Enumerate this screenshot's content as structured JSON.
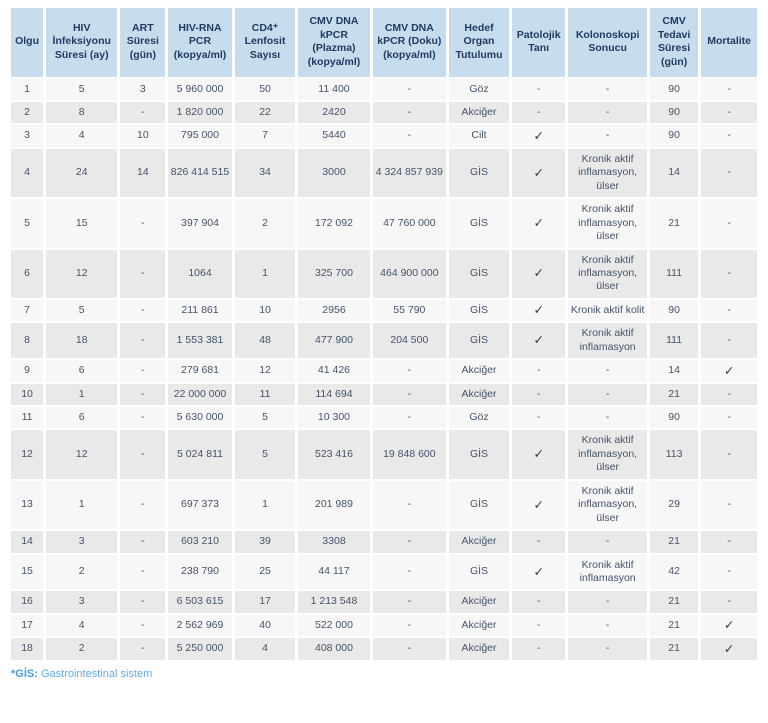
{
  "table": {
    "columns": [
      {
        "label": "Olgu"
      },
      {
        "label": "HIV İnfeksiyonu Süresi (ay)"
      },
      {
        "label": "ART Süresi (gün)"
      },
      {
        "label": "HIV-RNA PCR (kopya/ml)"
      },
      {
        "label": "CD4⁺ Lenfosit Sayısı"
      },
      {
        "label": "CMV DNA kPCR (Plazma) (kopya/ml)"
      },
      {
        "label": "CMV DNA kPCR (Doku) (kopya/ml)"
      },
      {
        "label": "Hedef Organ Tutulumu"
      },
      {
        "label": "Patolojik Tanı"
      },
      {
        "label": "Kolonoskopi Sonucu"
      },
      {
        "label": "CMV Tedavi Süresi (gün)"
      },
      {
        "label": "Mortalite"
      }
    ],
    "rows": [
      {
        "cells": [
          "1",
          "5",
          "3",
          "5 960 000",
          "50",
          "11 400",
          "-",
          "Göz",
          "-",
          "-",
          "90",
          "-"
        ]
      },
      {
        "cells": [
          "2",
          "8",
          "-",
          "1 820 000",
          "22",
          "2420",
          "-",
          "Akciğer",
          "-",
          "-",
          "90",
          "-"
        ]
      },
      {
        "cells": [
          "3",
          "4",
          "10",
          "795 000",
          "7",
          "5440",
          "-",
          "Cilt",
          "✓",
          "-",
          "90",
          "-"
        ]
      },
      {
        "cells": [
          "4",
          "24",
          "14",
          "826 414 515",
          "34",
          "3000",
          "4 324 857 939",
          "GİS",
          "✓",
          "Kronik aktif inflamasyon, ülser",
          "14",
          "-"
        ]
      },
      {
        "cells": [
          "5",
          "15",
          "-",
          "397 904",
          "2",
          "172 092",
          "47 760 000",
          "GİS",
          "✓",
          "Kronik aktif inflamasyon, ülser",
          "21",
          "-"
        ]
      },
      {
        "cells": [
          "6",
          "12",
          "-",
          "1064",
          "1",
          "325 700",
          "464 900 000",
          "GİS",
          "✓",
          "Kronik aktif inflamasyon, ülser",
          "111",
          "-"
        ]
      },
      {
        "cells": [
          "7",
          "5",
          "-",
          "211 861",
          "10",
          "2956",
          "55 790",
          "GİS",
          "✓",
          "Kronik aktif kolit",
          "90",
          "-"
        ]
      },
      {
        "cells": [
          "8",
          "18",
          "-",
          "1 553 381",
          "48",
          "477 900",
          "204 500",
          "GİS",
          "✓",
          "Kronik aktif inflamasyon",
          "111",
          "-"
        ]
      },
      {
        "cells": [
          "9",
          "6",
          "-",
          "279 681",
          "12",
          "41 426",
          "-",
          "Akciğer",
          "-",
          "-",
          "14",
          "✓"
        ]
      },
      {
        "cells": [
          "10",
          "1",
          "-",
          "22 000 000",
          "11",
          "114 694",
          "-",
          "Akciğer",
          "-",
          "-",
          "21",
          "-"
        ]
      },
      {
        "cells": [
          "11",
          "6",
          "-",
          "5 630 000",
          "5",
          "10 300",
          "-",
          "Göz",
          "-",
          "-",
          "90",
          "-"
        ]
      },
      {
        "cells": [
          "12",
          "12",
          "-",
          "5 024 811",
          "5",
          "523 416",
          "19 848 600",
          "GİS",
          "✓",
          "Kronik aktif inflamasyon, ülser",
          "113",
          "-"
        ]
      },
      {
        "cells": [
          "13",
          "1",
          "-",
          "697 373",
          "1",
          "201 989",
          "-",
          "GİS",
          "✓",
          "Kronik aktif inflamasyon, ülser",
          "29",
          "-"
        ]
      },
      {
        "cells": [
          "14",
          "3",
          "-",
          "603 210",
          "39",
          "3308",
          "-",
          "Akciğer",
          "-",
          "-",
          "21",
          "-"
        ]
      },
      {
        "cells": [
          "15",
          "2",
          "-",
          "238 790",
          "25",
          "44 117",
          "-",
          "GİS",
          "✓",
          "Kronik aktif inflamasyon",
          "42",
          "-"
        ]
      },
      {
        "cells": [
          "16",
          "3",
          "-",
          "6 503 615",
          "17",
          "1 213 548",
          "-",
          "Akciğer",
          "-",
          "-",
          "21",
          "-"
        ]
      },
      {
        "cells": [
          "17",
          "4",
          "-",
          "2 562 969",
          "40",
          "522 000",
          "-",
          "Akciğer",
          "-",
          "-",
          "21",
          "✓"
        ]
      },
      {
        "cells": [
          "18",
          "2",
          "-",
          "5 250 000",
          "4",
          "408 000",
          "-",
          "Akciğer",
          "-",
          "-",
          "21",
          "✓"
        ]
      }
    ]
  },
  "footnote": {
    "term": "*GİS:",
    "definition": "Gastrointestinal sistem"
  },
  "icons": {
    "checkmark": "✓"
  },
  "colors": {
    "header_bg": "#c7dcec",
    "header_text": "#1f3b63",
    "row_light_bg": "#f7f7f8",
    "row_dark_bg": "#e9e9ea",
    "cell_text": "#44546a",
    "checkmark": "#3d3d3d",
    "footnote_term": "#4a9bd5",
    "footnote_text": "#63ace0"
  }
}
